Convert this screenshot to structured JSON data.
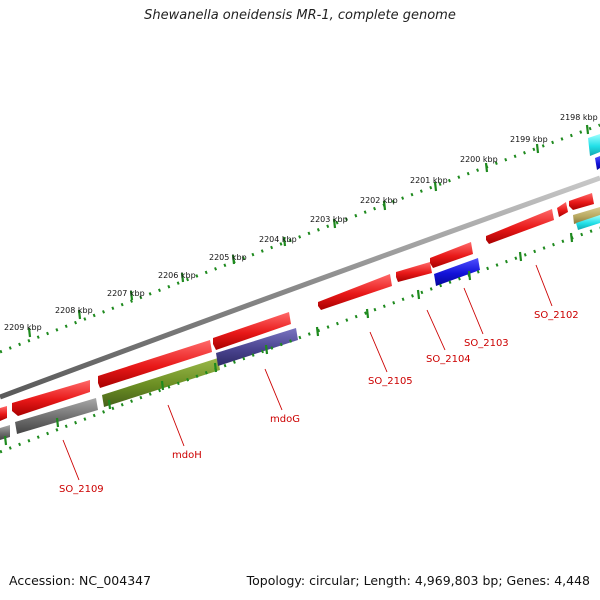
{
  "title": "Shewanella oneidensis MR-1, complete genome",
  "footer": {
    "accession": "Accession: NC_004347",
    "topology": "Topology: circular; Length: 4,969,803 bp; Genes: 4,448"
  },
  "scale": {
    "unit": "kbp",
    "labels": [
      "2198 kbp",
      "2199 kbp",
      "2200 kbp",
      "2201 kbp",
      "2202 kbp",
      "2203 kbp",
      "2204 kbp",
      "2205 kbp",
      "2206 kbp",
      "2207 kbp",
      "2208 kbp",
      "2209 kbp"
    ]
  },
  "colors": {
    "backbone": "#8a8a8a",
    "tick": "#1e8a1e",
    "red": "#e81818",
    "gray": "#6e6e6e",
    "olive": "#6b8e23",
    "purple": "#4a4490",
    "blue": "#1212d8",
    "cyan": "#22e0e8",
    "tan": "#b8a860",
    "label": "#cc0000"
  },
  "gene_labels": [
    "SO_2102",
    "SO_2103",
    "SO_2104",
    "SO_2105",
    "mdoG",
    "mdoH",
    "SO_2109"
  ]
}
